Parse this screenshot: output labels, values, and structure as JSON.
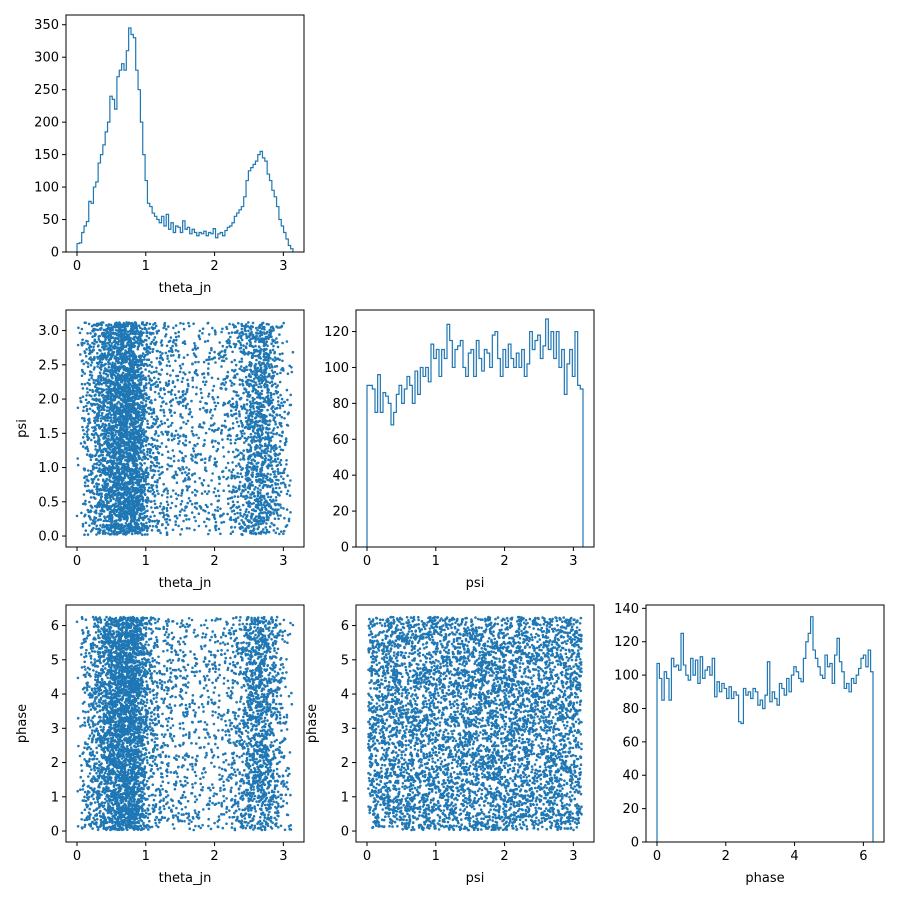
{
  "figure": {
    "type": "corner-plot",
    "color": "#1f77b4"
  },
  "chart_data": [
    {
      "type": "histogram",
      "id": "hist-theta_jn",
      "xlabel": "theta_jn",
      "ylabel": "",
      "xlim": [
        -0.16,
        3.3
      ],
      "ylim": [
        0,
        365
      ],
      "xticks": [
        0,
        1,
        2,
        3
      ],
      "yticks": [
        0,
        50,
        100,
        150,
        200,
        250,
        300,
        350
      ],
      "bin_range": [
        0,
        3.14
      ],
      "counts": [
        13,
        14,
        30,
        40,
        47,
        78,
        75,
        100,
        108,
        137,
        150,
        165,
        185,
        200,
        240,
        235,
        220,
        270,
        280,
        290,
        280,
        310,
        345,
        335,
        330,
        280,
        250,
        200,
        150,
        110,
        75,
        70,
        60,
        55,
        50,
        45,
        55,
        40,
        58,
        35,
        45,
        30,
        40,
        38,
        30,
        48,
        35,
        38,
        28,
        35,
        30,
        25,
        30,
        28,
        32,
        25,
        30,
        28,
        36,
        22,
        28,
        30,
        25,
        33,
        38,
        40,
        45,
        55,
        60,
        65,
        70,
        85,
        110,
        125,
        130,
        135,
        140,
        150,
        155,
        145,
        140,
        120,
        110,
        95,
        85,
        70,
        50,
        40,
        30,
        20,
        10,
        5
      ]
    },
    {
      "type": "scatter",
      "id": "scatter-theta_jn-psi",
      "xlabel": "theta_jn",
      "ylabel": "psi",
      "xlim": [
        -0.16,
        3.3
      ],
      "ylim": [
        -0.16,
        3.3
      ],
      "xticks": [
        0,
        1,
        2,
        3
      ],
      "yticks": [
        0.0,
        0.5,
        1.0,
        1.5,
        2.0,
        2.5,
        3.0
      ],
      "ytick_labels": [
        "0.0",
        "0.5",
        "1.0",
        "1.5",
        "2.0",
        "2.5",
        "3.0"
      ],
      "marker_size": 2
    },
    {
      "type": "histogram",
      "id": "hist-psi",
      "xlabel": "psi",
      "ylabel": "",
      "xlim": [
        -0.16,
        3.3
      ],
      "ylim": [
        0,
        132
      ],
      "xticks": [
        0,
        1,
        2,
        3
      ],
      "yticks": [
        0,
        20,
        40,
        60,
        80,
        100,
        120
      ],
      "bin_range": [
        0,
        3.14
      ],
      "counts": [
        90,
        90,
        88,
        75,
        96,
        75,
        86,
        84,
        80,
        68,
        75,
        85,
        90,
        80,
        88,
        95,
        90,
        80,
        98,
        85,
        100,
        95,
        100,
        92,
        113,
        105,
        110,
        95,
        110,
        105,
        124,
        115,
        100,
        110,
        112,
        115,
        100,
        95,
        108,
        110,
        95,
        115,
        105,
        98,
        110,
        108,
        100,
        118,
        120,
        105,
        95,
        110,
        100,
        113,
        105,
        100,
        108,
        100,
        110,
        95,
        102,
        120,
        110,
        115,
        118,
        105,
        112,
        127,
        110,
        120,
        105,
        120,
        100,
        110,
        85,
        102,
        110,
        95,
        120,
        90,
        88
      ]
    },
    {
      "type": "scatter",
      "id": "scatter-theta_jn-phase",
      "xlabel": "theta_jn",
      "ylabel": "phase",
      "xlim": [
        -0.16,
        3.3
      ],
      "ylim": [
        -0.32,
        6.6
      ],
      "xticks": [
        0,
        1,
        2,
        3
      ],
      "yticks": [
        0,
        1,
        2,
        3,
        4,
        5,
        6
      ],
      "marker_size": 2
    },
    {
      "type": "scatter",
      "id": "scatter-psi-phase",
      "xlabel": "psi",
      "ylabel": "phase",
      "xlim": [
        -0.16,
        3.3
      ],
      "ylim": [
        -0.32,
        6.6
      ],
      "xticks": [
        0,
        1,
        2,
        3
      ],
      "yticks": [
        0,
        1,
        2,
        3,
        4,
        5,
        6
      ],
      "marker_size": 2
    },
    {
      "type": "histogram",
      "id": "hist-phase",
      "xlabel": "phase",
      "ylabel": "",
      "xlim": [
        -0.32,
        6.6
      ],
      "ylim": [
        0,
        142
      ],
      "xticks": [
        0,
        2,
        4,
        6
      ],
      "yticks": [
        0,
        20,
        40,
        60,
        80,
        100,
        120,
        140
      ],
      "bin_range": [
        0,
        6.28
      ],
      "counts": [
        107,
        98,
        85,
        102,
        98,
        85,
        110,
        105,
        106,
        103,
        125,
        106,
        100,
        97,
        110,
        100,
        109,
        95,
        111,
        98,
        103,
        105,
        100,
        110,
        87,
        96,
        90,
        95,
        92,
        86,
        93,
        86,
        90,
        88,
        72,
        71,
        92,
        88,
        90,
        86,
        92,
        90,
        82,
        85,
        80,
        88,
        108,
        84,
        90,
        86,
        82,
        95,
        92,
        88,
        98,
        90,
        100,
        105,
        102,
        98,
        96,
        110,
        120,
        125,
        135,
        115,
        110,
        105,
        100,
        98,
        112,
        105,
        107,
        95,
        112,
        122,
        108,
        102,
        92,
        95,
        90,
        98,
        95,
        100,
        104,
        110,
        112,
        105,
        115,
        102
      ]
    }
  ],
  "scatter_points": {
    "description_free_count": 6000
  }
}
